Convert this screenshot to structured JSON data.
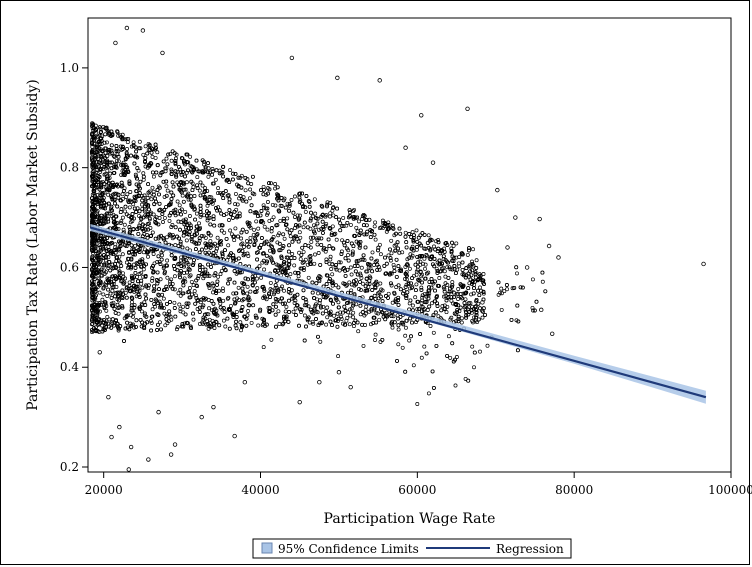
{
  "chart_data": {
    "type": "scatter",
    "xlabel": "Participation Wage Rate",
    "ylabel": "Participation Tax Rate (Labor Market Subsidy)",
    "xlim": [
      18000,
      100000
    ],
    "ylim": [
      0.19,
      1.1
    ],
    "x_ticks": [
      20000,
      40000,
      60000,
      80000,
      100000
    ],
    "y_ticks": [
      0.2,
      0.4,
      0.6,
      0.8,
      1.0
    ],
    "x_tick_labels": [
      "20000",
      "40000",
      "60000",
      "80000",
      "100000"
    ],
    "y_tick_labels": [
      "0.2",
      "0.4",
      "0.6",
      "0.8",
      "1.0"
    ],
    "grid": false,
    "legend_position": "bottom",
    "series": [
      {
        "name": "Regression",
        "kind": "line",
        "color": "#1f3a7a",
        "x": [
          18300,
          96800
        ],
        "y": [
          0.68,
          0.34
        ]
      },
      {
        "name": "95% Confidence Limits",
        "kind": "band",
        "color": "#a9c4e6",
        "x": [
          18300,
          40000,
          60000,
          80000,
          96800
        ],
        "lower": [
          0.673,
          0.584,
          0.497,
          0.407,
          0.327
        ],
        "upper": [
          0.687,
          0.594,
          0.509,
          0.423,
          0.353
        ]
      }
    ],
    "scatter_points": [
      [
        22959,
        1.08
      ],
      [
        25000,
        1.075
      ],
      [
        21500,
        1.05
      ],
      [
        27500,
        1.03
      ],
      [
        44000,
        1.02
      ],
      [
        49800,
        0.98
      ],
      [
        55200,
        0.975
      ],
      [
        60500,
        0.905
      ],
      [
        66400,
        0.918
      ],
      [
        58500,
        0.84
      ],
      [
        62000,
        0.81
      ],
      [
        70200,
        0.755
      ],
      [
        72500,
        0.7
      ],
      [
        75600,
        0.697
      ],
      [
        76800,
        0.643
      ],
      [
        78000,
        0.62
      ],
      [
        71500,
        0.64
      ],
      [
        74000,
        0.6
      ],
      [
        96500,
        0.607
      ],
      [
        75800,
        0.515
      ],
      [
        77200,
        0.467
      ],
      [
        68300,
        0.53
      ],
      [
        19500,
        0.43
      ],
      [
        20600,
        0.34
      ],
      [
        22000,
        0.28
      ],
      [
        21000,
        0.26
      ],
      [
        23500,
        0.24
      ],
      [
        23200,
        0.195
      ],
      [
        25700,
        0.215
      ],
      [
        28600,
        0.225
      ],
      [
        29100,
        0.245
      ],
      [
        36700,
        0.262
      ],
      [
        32500,
        0.3
      ],
      [
        34000,
        0.32
      ],
      [
        27000,
        0.31
      ],
      [
        38000,
        0.37
      ],
      [
        45000,
        0.33
      ],
      [
        47500,
        0.37
      ],
      [
        51500,
        0.36
      ],
      [
        50000,
        0.39
      ]
    ]
  }
}
